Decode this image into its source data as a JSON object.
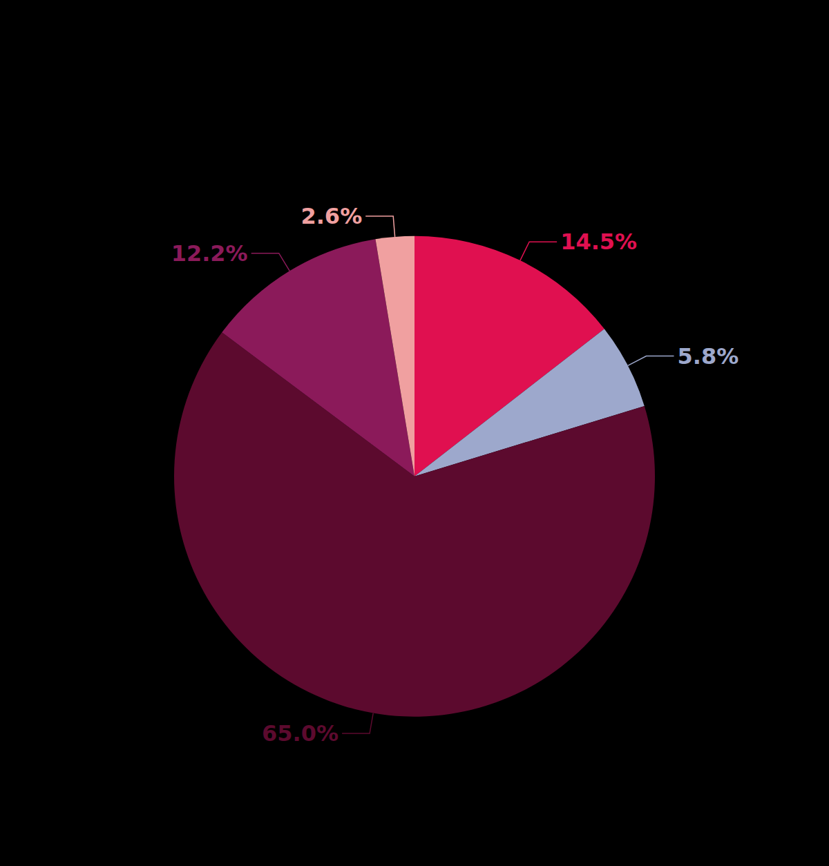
{
  "chart_data": {
    "type": "pie",
    "values": [
      14.5,
      5.8,
      65.0,
      12.2,
      2.6
    ],
    "value_labels": [
      "14.5%",
      "5.8%",
      "65.0%",
      "12.2%",
      "2.6%"
    ],
    "colors": [
      "#e01050",
      "#9da8cc",
      "#5c0a2e",
      "#8b1a5a",
      "#f0a0a0"
    ],
    "data_labels": true
  }
}
